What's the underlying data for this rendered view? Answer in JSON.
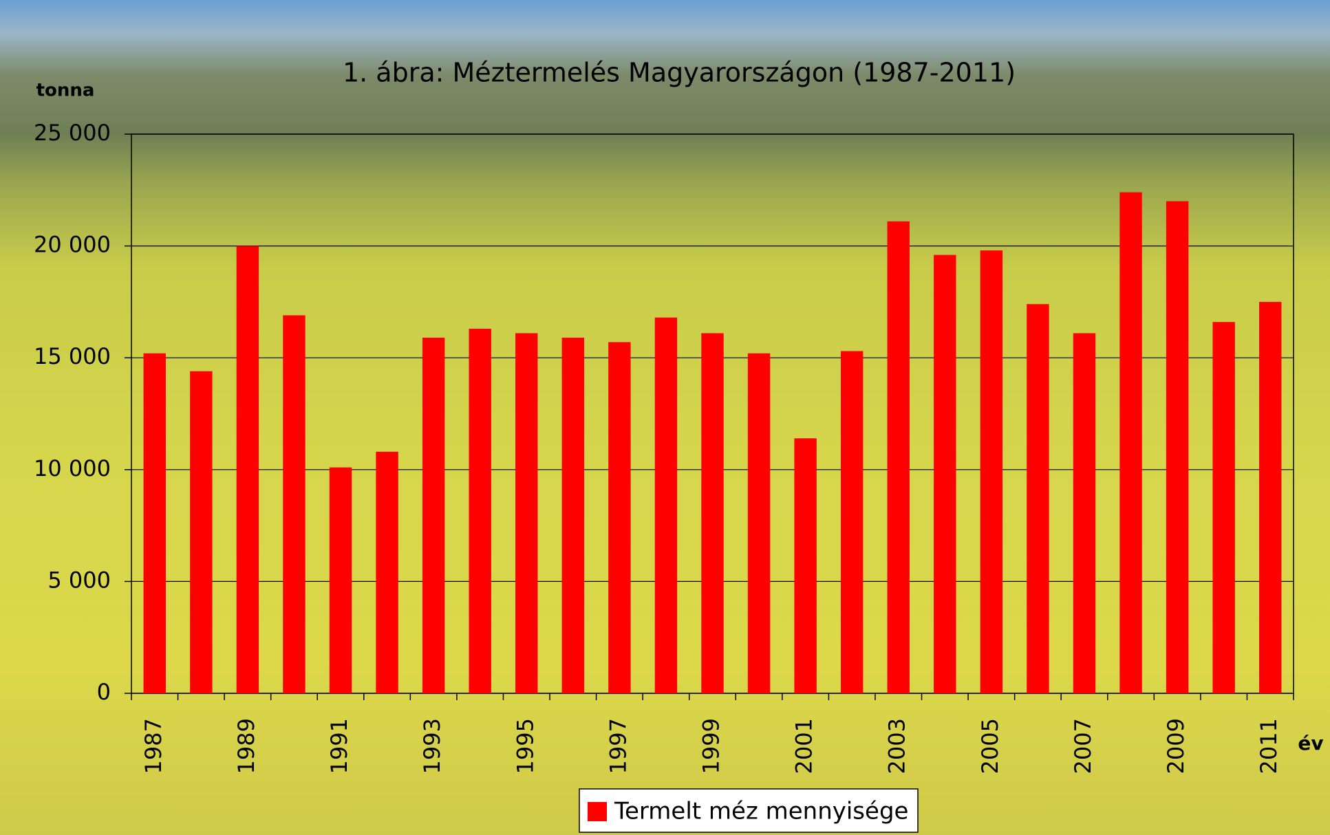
{
  "chart_data": {
    "type": "bar",
    "title": "1. ábra: Méztermelés Magyarországon (1987-2011)",
    "y_axis_label": "tonna",
    "x_axis_label": "év",
    "categories": [
      "1987",
      null,
      "1989",
      null,
      "1991",
      null,
      "1993",
      null,
      "1995",
      null,
      "1997",
      null,
      "1999",
      null,
      "2001",
      null,
      "2003",
      null,
      "2005",
      null,
      "2007",
      null,
      "2009",
      null,
      "2011"
    ],
    "series": [
      {
        "name": "Termelt méz mennyisége",
        "color": "#ff0000",
        "values": [
          15200,
          14400,
          20000,
          16900,
          10100,
          10800,
          15900,
          16300,
          16100,
          15900,
          15700,
          16800,
          16100,
          15200,
          11400,
          15300,
          21100,
          19600,
          19800,
          17400,
          16100,
          22400,
          22000,
          16600,
          17500
        ]
      }
    ],
    "ylim": [
      0,
      25000
    ],
    "yticks": [
      0,
      {
        "value": 5000,
        "label": "5 000"
      },
      {
        "value": 10000,
        "label": "10 000"
      },
      {
        "value": 15000,
        "label": "15 000"
      },
      {
        "value": 20000,
        "label": "20 000"
      },
      {
        "value": 25000,
        "label": "25 000"
      }
    ],
    "grid": true
  }
}
